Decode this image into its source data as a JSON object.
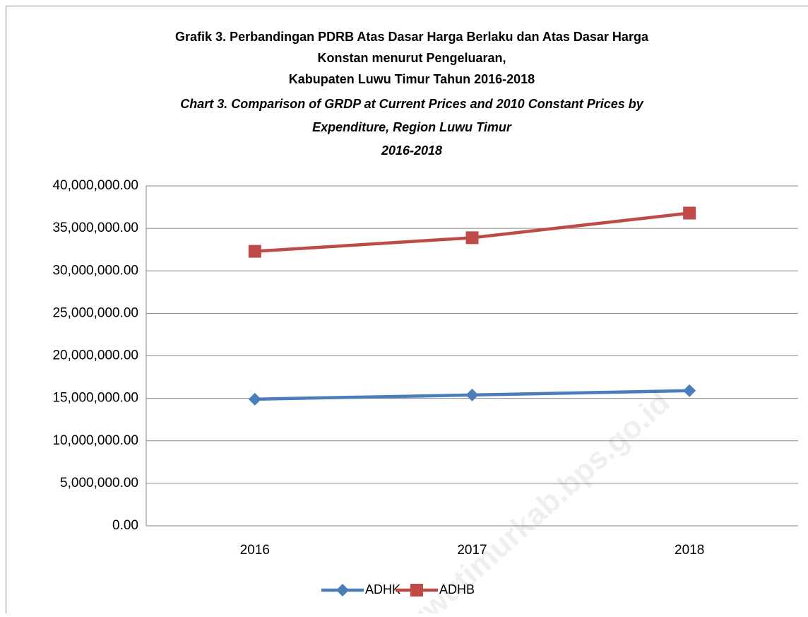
{
  "chart_data": {
    "type": "line",
    "title": [
      "Grafik 3. Perbandingan PDRB Atas Dasar Harga Berlaku dan Atas Dasar Harga",
      "Konstan menurut Pengeluaran,",
      "Kabupaten Luwu Timur Tahun 2016-2018"
    ],
    "subtitle": [
      "Chart 3. Comparison of GRDP at Current Prices and 2010 Constant Prices by",
      "Expenditure, Region Luwu Timur",
      "2016-2018"
    ],
    "watermark": "luwutimurkab.bps.go.id",
    "categories": [
      "2016",
      "2017",
      "2018"
    ],
    "series": [
      {
        "name": "ADHK",
        "color": "#4a7ebb",
        "marker": "diamond",
        "values": [
          14900000,
          15400000,
          15900000
        ]
      },
      {
        "name": "ADHB",
        "color": "#be4b48",
        "marker": "square",
        "values": [
          32300000,
          33900000,
          36800000
        ]
      }
    ],
    "ylim": [
      0,
      40000000
    ],
    "yticks": [
      {
        "value": 0,
        "label": "0.00"
      },
      {
        "value": 5000000,
        "label": "5,000,000.00"
      },
      {
        "value": 10000000,
        "label": "10,000,000.00"
      },
      {
        "value": 15000000,
        "label": "15,000,000.00"
      },
      {
        "value": 20000000,
        "label": "20,000,000.00"
      },
      {
        "value": 25000000,
        "label": "25,000,000.00"
      },
      {
        "value": 30000000,
        "label": "30,000,000.00"
      },
      {
        "value": 35000000,
        "label": "35,000,000.00"
      },
      {
        "value": 40000000,
        "label": "40,000,000.00"
      }
    ],
    "grid": true,
    "legend": "bottom"
  }
}
